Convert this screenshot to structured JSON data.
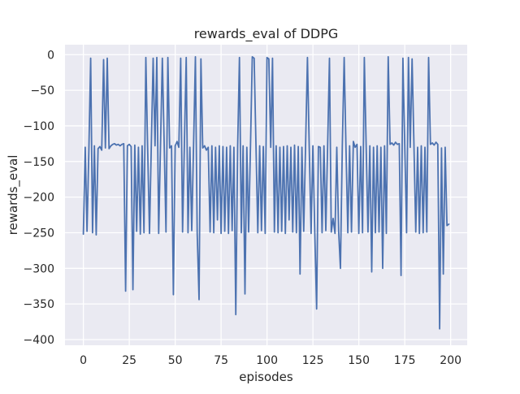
{
  "figure": {
    "background": "#ffffff"
  },
  "chart_data": {
    "type": "line",
    "title": "rewards_eval of DDPG",
    "xlabel": "episodes",
    "ylabel": "rewards_eval",
    "grid": true,
    "legend": "none",
    "xlim": [
      -10,
      209
    ],
    "ylim": [
      -408,
      14
    ],
    "x_ticks": [
      0,
      25,
      50,
      75,
      100,
      125,
      150,
      175,
      200
    ],
    "x_tick_labels": [
      "0",
      "25",
      "50",
      "75",
      "100",
      "125",
      "150",
      "175",
      "200"
    ],
    "y_ticks": [
      0,
      -50,
      -100,
      -150,
      -200,
      -250,
      -300,
      -350,
      -400
    ],
    "y_tick_labels": [
      "0",
      "−50",
      "−100",
      "−150",
      "−200",
      "−250",
      "−300",
      "−350",
      "−400"
    ],
    "style": {
      "axes_background": "#eaeaf2",
      "grid_color": "#ffffff",
      "text_color": "#262626",
      "line_color": "#4c72b0"
    },
    "series": [
      {
        "name": "rewards_eval",
        "color": "#4c72b0",
        "x_mode": "index",
        "values": [
          -252,
          -130,
          -248,
          -133,
          -5,
          -250,
          -128,
          -253,
          -132,
          -129,
          -134,
          -7,
          -131,
          -5,
          -132,
          -128,
          -126,
          -125,
          -127,
          -126,
          -128,
          -126,
          -125,
          -332,
          -128,
          -126,
          -129,
          -330,
          -127,
          -248,
          -130,
          -252,
          -128,
          -250,
          -4,
          -130,
          -251,
          -129,
          -5,
          -128,
          -4,
          -251,
          -130,
          -5,
          -127,
          -249,
          -4,
          -131,
          -128,
          -337,
          -128,
          -122,
          -130,
          -5,
          -249,
          -128,
          -4,
          -250,
          -130,
          -247,
          -129,
          -3,
          -251,
          -344,
          -6,
          -131,
          -128,
          -134,
          -130,
          -249,
          -128,
          -250,
          -130,
          -232,
          -128,
          -251,
          -129,
          -248,
          -130,
          -251,
          -128,
          -247,
          -130,
          -365,
          -129,
          -4,
          -250,
          -128,
          -336,
          -130,
          -249,
          -128,
          -3,
          -5,
          -130,
          -250,
          -128,
          -247,
          -129,
          -251,
          -4,
          -6,
          -130,
          -5,
          -249,
          -128,
          -250,
          -130,
          -248,
          -129,
          -251,
          -128,
          -232,
          -130,
          -249,
          -127,
          -250,
          -129,
          -308,
          -130,
          -248,
          -128,
          -4,
          -130,
          -251,
          -128,
          -249,
          -357,
          -129,
          -130,
          -250,
          -128,
          -247,
          -130,
          -5,
          -249,
          -230,
          -251,
          -130,
          -248,
          -300,
          -129,
          -4,
          -130,
          -250,
          -128,
          -249,
          -122,
          -130,
          -126,
          -251,
          -129,
          -250,
          -4,
          -130,
          -249,
          -128,
          -305,
          -130,
          -250,
          -128,
          -249,
          -130,
          -300,
          -128,
          -251,
          -3,
          -126,
          -124,
          -127,
          -123,
          -126,
          -125,
          -310,
          -5,
          -129,
          -250,
          -4,
          -130,
          -6,
          -128,
          -249,
          -130,
          -251,
          -128,
          -250,
          -130,
          -249,
          -4,
          -126,
          -124,
          -127,
          -123,
          -126,
          -385,
          -131,
          -308,
          -130,
          -240,
          -238
        ]
      }
    ]
  }
}
